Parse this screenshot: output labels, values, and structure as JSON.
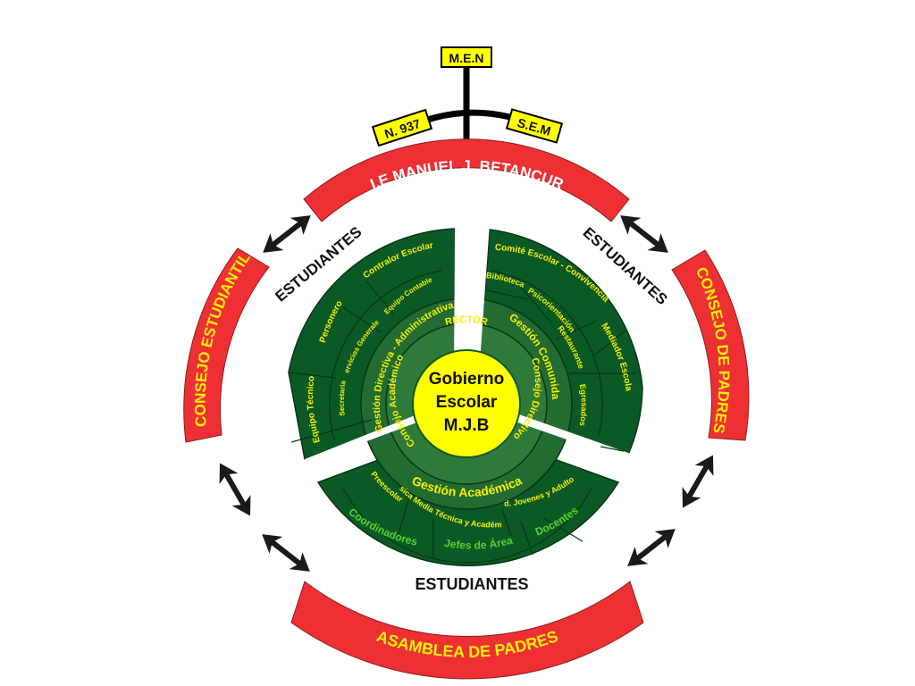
{
  "hierarchy": {
    "top": "M.E.N",
    "left": "N. 937",
    "right": "S.E.M"
  },
  "arcs": {
    "top": "I.E MANUEL J. BETANCUR",
    "left": "CONSEJO ESTUDIANTIL",
    "right": "CONSEJO DE PADRES",
    "bottom": "ASAMBLEA DE PADRES"
  },
  "students": {
    "left": "ESTUDIANTES",
    "right": "ESTUDIANTES",
    "bottom": "ESTUDIANTES"
  },
  "center": {
    "line1": "Gobierno",
    "line2": "Escolar",
    "line3": "M.J.B"
  },
  "ring1": {
    "rector": "RECTOR",
    "consejo_directivo": "Consejo Directivo",
    "consejo_academico": "Consejo Académico"
  },
  "left_sector": {
    "gestion": "Gestión Directiva - Administrativa",
    "secretaria": "Secretaria",
    "servicios": "Servicios Generales",
    "equipo_contable": "Equipo Contable",
    "equipo_tecnico": "Equipo Técnico",
    "personero": "Personero",
    "contralor": "Contralor Escolar"
  },
  "right_sector": {
    "gestion": "Gestión Comunidad",
    "biblioteca": "Biblioteca",
    "psicorientacion": "Psicorientación",
    "restaurante": "Restaurante",
    "egresados": "Egresados",
    "comite": "Comité Escolar - Convivencia",
    "mediador": "Mediador Escolar"
  },
  "bottom_sector": {
    "gestion": "Gestión Académica",
    "preescolar": "Preescolar",
    "basica": "Básica Media Técnica y Académica",
    "ed_jovenes": "Ed. Jovenes y Adultos",
    "coordinadores": "Coordinadores",
    "jefes": "Jefes de Área",
    "docentes": "Docentes"
  },
  "colors": {
    "red": "#ee3035",
    "dark_green": "#0b5a26",
    "mid_green": "#226b31",
    "ring_green": "#2f7a3b",
    "yellow": "#ffff00",
    "yellow_text": "#f4f000",
    "light_green_text": "#56d22a"
  }
}
